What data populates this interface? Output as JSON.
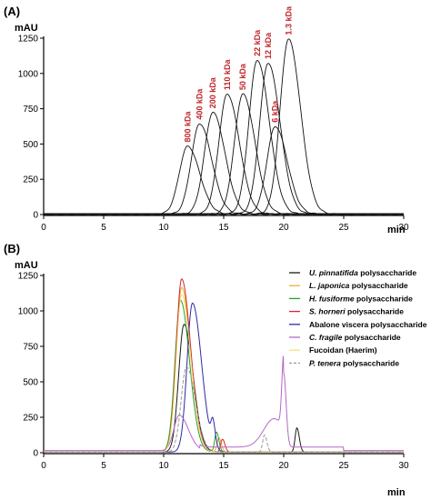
{
  "figure": {
    "panels": [
      "(A)",
      "(B)"
    ]
  },
  "chart_data": [
    {
      "type": "line",
      "panel": "(A)",
      "ylabel": "mAU",
      "xlabel": "min",
      "xlim": [
        0,
        30
      ],
      "ylim": [
        0,
        1250
      ],
      "xticks": [
        0,
        5,
        10,
        15,
        20,
        25,
        30
      ],
      "yticks": [
        0,
        250,
        500,
        750,
        1000,
        1250
      ],
      "line_color": "#111111",
      "annotation_color": "#c0262b",
      "series": [
        {
          "label": "800 kDa",
          "peak_time": 12.0,
          "peak_value": 480
        },
        {
          "label": "400 kDa",
          "peak_time": 13.0,
          "peak_value": 640
        },
        {
          "label": "200 kDa",
          "peak_time": 14.1,
          "peak_value": 720
        },
        {
          "label": "110 kDa",
          "peak_time": 15.3,
          "peak_value": 850
        },
        {
          "label": "50 kDa",
          "peak_time": 16.6,
          "peak_value": 850
        },
        {
          "label": "22 kDa",
          "peak_time": 17.8,
          "peak_value": 1090
        },
        {
          "label": "12 kDa",
          "peak_time": 18.7,
          "peak_value": 1070
        },
        {
          "label": "6 kDa",
          "peak_time": 19.3,
          "peak_value": 620
        },
        {
          "label": "1.3 kDa",
          "peak_time": 20.4,
          "peak_value": 1240
        }
      ]
    },
    {
      "type": "line",
      "panel": "(B)",
      "ylabel": "mAU",
      "xlabel": "min",
      "xlim": [
        0,
        30
      ],
      "ylim": [
        0,
        1250
      ],
      "xticks": [
        0,
        5,
        10,
        15,
        20,
        25,
        30
      ],
      "yticks": [
        0,
        250,
        500,
        750,
        1000,
        1250
      ],
      "legend_position": "top-right",
      "series": [
        {
          "name_italic": "U. pinnatifida",
          "name_rest": " polysaccharide",
          "color": "#1a1a1a",
          "dashed": false,
          "peak_time": 11.7,
          "peak_value": 900,
          "minor_peaks": [
            [
              21.1,
              170
            ]
          ]
        },
        {
          "name_italic": "L. japonica",
          "name_rest": " polysaccharide",
          "color": "#e0b43a",
          "dashed": false,
          "peak_time": 11.5,
          "peak_value": 1160,
          "minor_peaks": [
            [
              14.6,
              100
            ]
          ]
        },
        {
          "name_italic": "H. fusiforme",
          "name_rest": " polysaccharide",
          "color": "#2ca02c",
          "dashed": false,
          "peak_time": 11.4,
          "peak_value": 1070,
          "minor_peaks": [
            [
              14.4,
              140
            ]
          ]
        },
        {
          "name_italic": "S. horneri",
          "name_rest": " polysaccharide",
          "color": "#d62728",
          "dashed": false,
          "peak_time": 11.5,
          "peak_value": 1220,
          "minor_peaks": [
            [
              14.9,
              90
            ]
          ]
        },
        {
          "name_italic": "",
          "name_rest": "Abalone viscera polysaccharide",
          "color": "#2d2aa5",
          "dashed": false,
          "peak_time": 12.4,
          "peak_value": 1050,
          "minor_peaks": [
            [
              14.1,
              160
            ]
          ]
        },
        {
          "name_italic": "C. fragile",
          "name_rest": " polysaccharide",
          "color": "#b468c8",
          "dashed": false,
          "peak_time": 11.3,
          "peak_value": 250,
          "minor_peaks": [
            [
              20.0,
              520
            ]
          ]
        },
        {
          "name_italic": "",
          "name_rest": "Fucoidan (Haerim)",
          "color": "#f3e17a",
          "dashed": false,
          "peak_time": 11.5,
          "peak_value": 1110,
          "minor_peaks": []
        },
        {
          "name_italic": "P. tenera",
          "name_rest": " polysaccharide",
          "color": "#9a9a9a",
          "dashed": true,
          "peak_time": 11.9,
          "peak_value": 600,
          "minor_peaks": [
            [
              18.4,
              120
            ]
          ]
        }
      ]
    }
  ]
}
